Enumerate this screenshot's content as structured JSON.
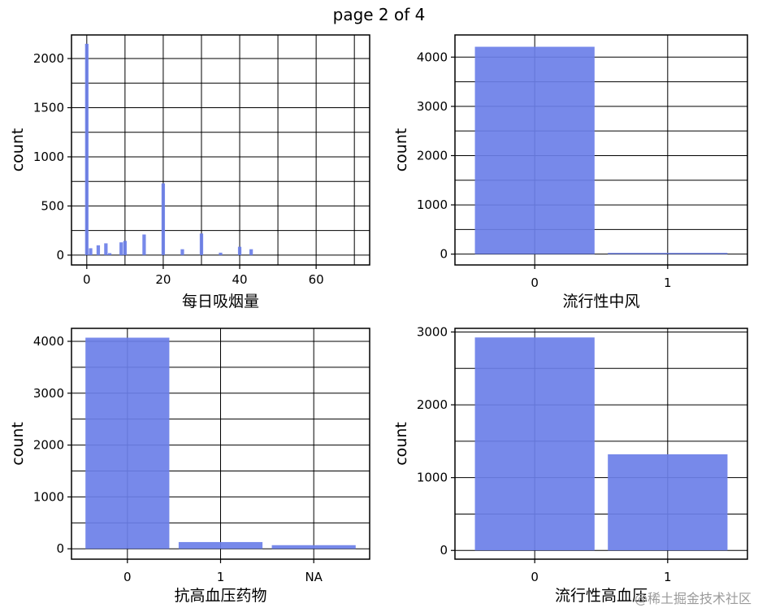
{
  "page_title": "page 2 of 4",
  "watermark": "@稀土掘金技术社区",
  "colors": {
    "bar": "#6b7fe8",
    "grid": "#000000",
    "frame": "#000000"
  },
  "chart_data": [
    {
      "type": "bar",
      "subtype": "histogram",
      "xlabel": "每日吸烟量",
      "ylabel": "count",
      "xlim": [
        -4,
        74
      ],
      "ylim": [
        -100,
        2240
      ],
      "xticks": [
        0,
        20,
        40,
        60
      ],
      "yticks": [
        0,
        500,
        1000,
        1500,
        2000
      ],
      "grid": true,
      "bin_width": 0.9,
      "x": [
        0,
        1,
        3,
        5,
        6,
        9,
        10,
        15,
        20,
        25,
        30,
        35,
        40,
        43
      ],
      "values": [
        2150,
        70,
        100,
        120,
        20,
        130,
        145,
        210,
        730,
        60,
        220,
        25,
        85,
        60
      ]
    },
    {
      "type": "bar",
      "xlabel": "流行性中风",
      "ylabel": "count",
      "categories": [
        "0",
        "1"
      ],
      "values": [
        4210,
        25
      ],
      "ylim": [
        -220,
        4450
      ],
      "yticks": [
        0,
        1000,
        2000,
        3000,
        4000
      ],
      "grid": true
    },
    {
      "type": "bar",
      "xlabel": "抗高血压药物",
      "ylabel": "count",
      "categories": [
        "0",
        "1",
        "NA"
      ],
      "values": [
        4070,
        130,
        70
      ],
      "ylim": [
        -200,
        4250
      ],
      "yticks": [
        0,
        1000,
        2000,
        3000,
        4000
      ],
      "grid": true
    },
    {
      "type": "bar",
      "xlabel": "流行性高血压",
      "ylabel": "count",
      "categories": [
        "0",
        "1"
      ],
      "values": [
        2925,
        1320
      ],
      "ylim": [
        -120,
        3050
      ],
      "yticks": [
        0,
        1000,
        2000,
        3000
      ],
      "grid": true
    }
  ]
}
